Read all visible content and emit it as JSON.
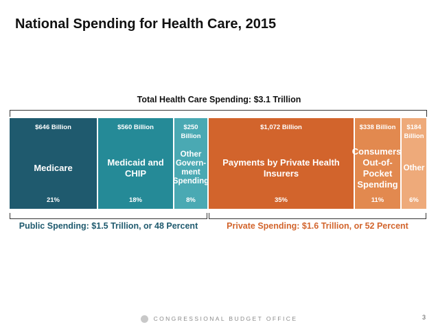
{
  "slide": {
    "title": "National Spending for Health Care, 2015",
    "footer": "CONGRESSIONAL BUDGET OFFICE",
    "page_number": "3"
  },
  "chart_data": {
    "type": "bar",
    "orientation": "stacked-horizontal",
    "title": "Total Health Care Spending: $3.1 Trillion",
    "unit": "percent of total",
    "segments": [
      {
        "name": "Medicare",
        "amount_label": "$646 Billion",
        "percent": 21,
        "percent_label": "21%",
        "group": "public",
        "color": "#1f5a6e"
      },
      {
        "name": "Medicaid and CHIP",
        "amount_label": "$560 Billion",
        "percent": 18,
        "percent_label": "18%",
        "group": "public",
        "color": "#258a97"
      },
      {
        "name": "Other Govern- ment Spending",
        "amount_label": "$250 Billion",
        "percent": 8,
        "percent_label": "8%",
        "group": "public",
        "color": "#4aa9b3"
      },
      {
        "name": "Payments by Private Health Insurers",
        "amount_label": "$1,072 Billion",
        "percent": 35,
        "percent_label": "35%",
        "group": "private",
        "color": "#d2642c"
      },
      {
        "name": "Consumers’ Out-of- Pocket Spending",
        "amount_label": "$338 Billion",
        "percent": 11,
        "percent_label": "11%",
        "group": "private",
        "color": "#e2894f"
      },
      {
        "name": "Other",
        "amount_label": "$184 Billion",
        "percent": 6,
        "percent_label": "6%",
        "group": "private",
        "color": "#eeaa7a"
      }
    ],
    "groups": {
      "public": {
        "label": "Public Spending: $1.5 Trillion, or 48 Percent",
        "color": "#1f5a6e"
      },
      "private": {
        "label": "Private Spending: $1.6 Trillion, or 52 Percent",
        "color": "#d2642c"
      }
    }
  }
}
